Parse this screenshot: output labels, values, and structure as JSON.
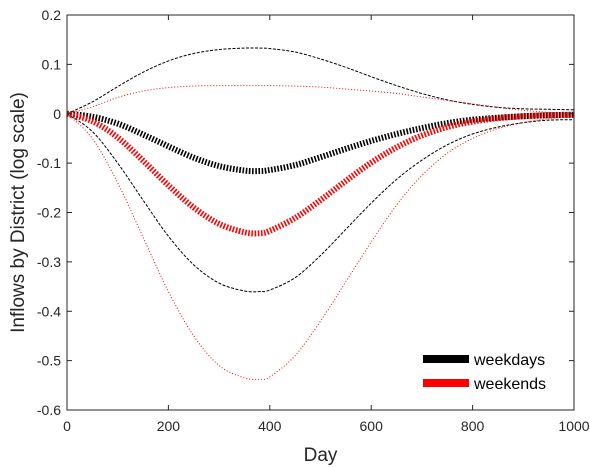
{
  "chart_data": {
    "type": "line",
    "xlabel": "Day",
    "ylabel": "Inflows by District (log scale)",
    "xlim": [
      0,
      1000
    ],
    "ylim": [
      -0.6,
      0.2
    ],
    "xticks": [
      "0",
      "200",
      "400",
      "600",
      "800",
      "1000"
    ],
    "yticks": [
      "0.2",
      "0.1",
      "0",
      "-0.1",
      "-0.2",
      "-0.3",
      "-0.4",
      "-0.5",
      "-0.6"
    ],
    "grid": false,
    "legend_position": "bottom-right",
    "x": [
      0,
      50,
      100,
      150,
      200,
      250,
      300,
      350,
      380,
      400,
      450,
      500,
      550,
      600,
      650,
      700,
      750,
      800,
      850,
      900,
      950,
      1000
    ],
    "series": [
      {
        "name": "weekdays",
        "color": "#000000",
        "style": "thick",
        "values": [
          0,
          -0.006,
          -0.02,
          -0.042,
          -0.066,
          -0.089,
          -0.106,
          -0.115,
          -0.116,
          -0.114,
          -0.104,
          -0.088,
          -0.071,
          -0.055,
          -0.041,
          -0.029,
          -0.019,
          -0.012,
          -0.008,
          -0.005,
          -0.003,
          -0.002
        ]
      },
      {
        "name": "weekends",
        "color": "#ff0000",
        "style": "thick",
        "values": [
          0,
          -0.015,
          -0.048,
          -0.095,
          -0.145,
          -0.19,
          -0.223,
          -0.24,
          -0.242,
          -0.237,
          -0.211,
          -0.175,
          -0.136,
          -0.099,
          -0.068,
          -0.044,
          -0.027,
          -0.016,
          -0.009,
          -0.005,
          -0.003,
          -0.002
        ]
      },
      {
        "color": "#000000",
        "style": "dashed",
        "values": [
          0,
          0.024,
          0.055,
          0.084,
          0.107,
          0.122,
          0.13,
          0.133,
          0.133,
          0.132,
          0.125,
          0.111,
          0.094,
          0.075,
          0.057,
          0.041,
          0.028,
          0.019,
          0.013,
          0.01,
          0.009,
          0.008
        ]
      },
      {
        "color": "#000000",
        "style": "dashed",
        "values": [
          0,
          -0.036,
          -0.1,
          -0.175,
          -0.248,
          -0.306,
          -0.343,
          -0.359,
          -0.36,
          -0.357,
          -0.332,
          -0.287,
          -0.234,
          -0.181,
          -0.133,
          -0.094,
          -0.063,
          -0.041,
          -0.027,
          -0.018,
          -0.013,
          -0.012
        ]
      },
      {
        "color": "#ff0000",
        "style": "dotted",
        "values": [
          0,
          0.014,
          0.033,
          0.046,
          0.053,
          0.056,
          0.057,
          0.057,
          0.057,
          0.057,
          0.056,
          0.054,
          0.05,
          0.046,
          0.041,
          0.034,
          0.027,
          0.02,
          0.013,
          0.007,
          0.003,
          0.001
        ]
      },
      {
        "color": "#ff0000",
        "style": "dotted",
        "values": [
          0,
          -0.05,
          -0.14,
          -0.25,
          -0.36,
          -0.45,
          -0.51,
          -0.535,
          -0.538,
          -0.533,
          -0.49,
          -0.42,
          -0.34,
          -0.26,
          -0.185,
          -0.125,
          -0.08,
          -0.05,
          -0.03,
          -0.018,
          -0.01,
          -0.006
        ]
      }
    ]
  }
}
